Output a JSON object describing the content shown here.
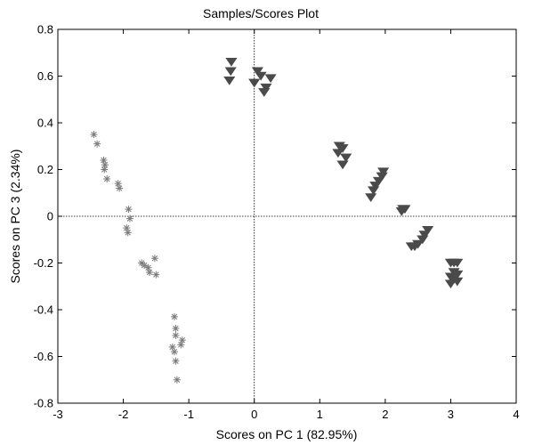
{
  "chart_data": {
    "type": "scatter",
    "title": "Samples/Scores Plot",
    "xlabel": "Scores on PC 1 (82.95%)",
    "ylabel": "Scores on PC 3 (2.34%)",
    "xlim": [
      -3,
      4
    ],
    "ylim": [
      -0.8,
      0.8
    ],
    "xticks": [
      -3,
      -2,
      -1,
      0,
      1,
      2,
      3,
      4
    ],
    "yticks": [
      -0.8,
      -0.6,
      -0.4,
      -0.2,
      0,
      0.2,
      0.4,
      0.6,
      0.8
    ],
    "xtick_labels": [
      "-3",
      "-2",
      "-1",
      "0",
      "1",
      "2",
      "3",
      "4"
    ],
    "ytick_labels": [
      "-0.8",
      "-0.6",
      "-0.4",
      "-0.2",
      "0",
      "0.2",
      "0.4",
      "0.6",
      "0.8"
    ],
    "grid": false,
    "reference_lines": {
      "x": 0,
      "y": 0,
      "style": "dotted"
    },
    "series": [
      {
        "marker": "asterisk",
        "color": "#7a7a7a",
        "points": [
          [
            -2.45,
            0.35
          ],
          [
            -2.4,
            0.31
          ],
          [
            -2.3,
            0.24
          ],
          [
            -2.28,
            0.22
          ],
          [
            -2.29,
            0.2
          ],
          [
            -2.25,
            0.16
          ],
          [
            -2.08,
            0.14
          ],
          [
            -2.06,
            0.12
          ],
          [
            -1.92,
            0.03
          ],
          [
            -1.9,
            -0.01
          ],
          [
            -1.95,
            -0.05
          ],
          [
            -1.93,
            -0.07
          ],
          [
            -1.72,
            -0.2
          ],
          [
            -1.68,
            -0.21
          ],
          [
            -1.62,
            -0.22
          ],
          [
            -1.6,
            -0.24
          ],
          [
            -1.52,
            -0.18
          ],
          [
            -1.5,
            -0.25
          ],
          [
            -1.22,
            -0.43
          ],
          [
            -1.2,
            -0.48
          ],
          [
            -1.2,
            -0.51
          ],
          [
            -1.1,
            -0.53
          ],
          [
            -1.12,
            -0.55
          ],
          [
            -1.25,
            -0.56
          ],
          [
            -1.22,
            -0.58
          ],
          [
            -1.2,
            -0.62
          ],
          [
            -1.18,
            -0.7
          ]
        ]
      },
      {
        "marker": "triangle-down",
        "color": "#4a4a4a",
        "points": [
          [
            -0.35,
            0.66
          ],
          [
            -0.36,
            0.62
          ],
          [
            -0.38,
            0.58
          ],
          [
            0.05,
            0.62
          ],
          [
            0.1,
            0.6
          ],
          [
            0.0,
            0.57
          ],
          [
            0.25,
            0.59
          ],
          [
            0.18,
            0.55
          ],
          [
            0.15,
            0.53
          ],
          [
            1.3,
            0.3
          ],
          [
            1.35,
            0.29
          ],
          [
            1.28,
            0.27
          ],
          [
            1.4,
            0.25
          ],
          [
            1.35,
            0.22
          ],
          [
            1.97,
            0.19
          ],
          [
            1.95,
            0.17
          ],
          [
            1.9,
            0.15
          ],
          [
            1.85,
            0.13
          ],
          [
            1.82,
            0.11
          ],
          [
            1.78,
            0.08
          ],
          [
            2.27,
            0.03
          ],
          [
            2.3,
            0.03
          ],
          [
            2.25,
            0.02
          ],
          [
            2.5,
            -0.12
          ],
          [
            2.45,
            -0.13
          ],
          [
            2.4,
            -0.13
          ],
          [
            2.65,
            -0.06
          ],
          [
            2.6,
            -0.08
          ],
          [
            2.57,
            -0.1
          ],
          [
            3.0,
            -0.2
          ],
          [
            3.05,
            -0.2
          ],
          [
            3.1,
            -0.2
          ],
          [
            3.05,
            -0.24
          ],
          [
            3.1,
            -0.25
          ],
          [
            3.0,
            -0.26
          ],
          [
            3.05,
            -0.27
          ],
          [
            3.1,
            -0.28
          ],
          [
            3.0,
            -0.29
          ]
        ]
      }
    ]
  }
}
